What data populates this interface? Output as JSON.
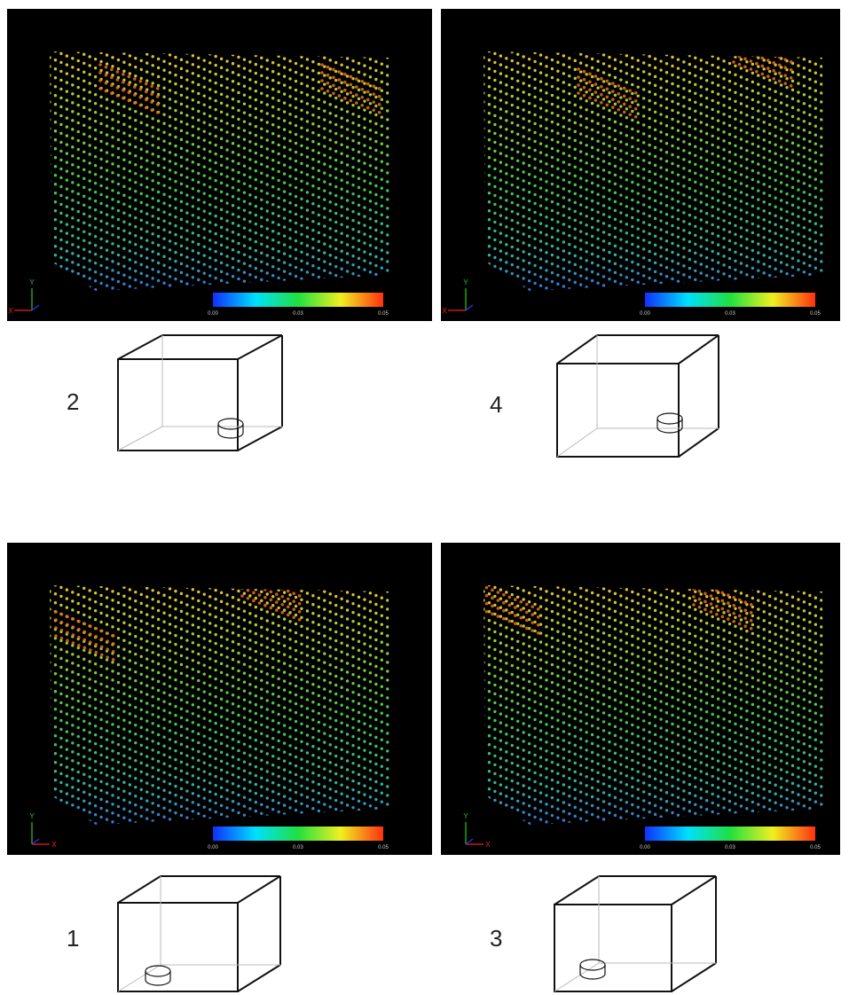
{
  "panels": [
    {
      "label": "2",
      "colorbar": {
        "labels": [
          "0.00",
          "0.03",
          "0.05"
        ]
      },
      "axes": {
        "y": "Y",
        "x": "X"
      }
    },
    {
      "label": "4",
      "colorbar": {
        "labels": [
          "0.00",
          "0.03",
          "0.05"
        ]
      },
      "axes": {
        "y": "Y",
        "x": "X"
      }
    },
    {
      "label": "1",
      "colorbar": {
        "labels": [
          "0.00",
          "0.03",
          "0.05"
        ]
      },
      "axes": {
        "y": "Y",
        "x": "X"
      }
    },
    {
      "label": "3",
      "colorbar": {
        "labels": [
          "0.00",
          "0.03",
          "0.05"
        ]
      },
      "axes": {
        "y": "Y",
        "x": "X"
      }
    }
  ]
}
